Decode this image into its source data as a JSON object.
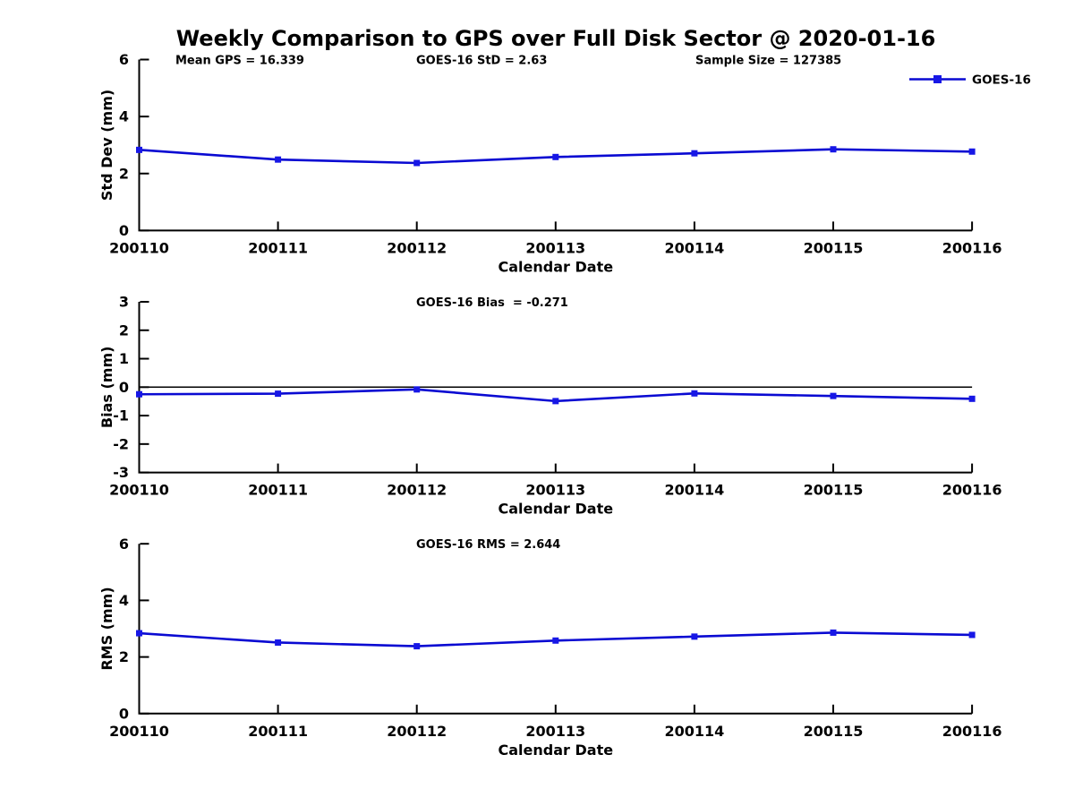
{
  "title": "Weekly Comparison to GPS over Full Disk Sector @ 2020-01-16",
  "legend": {
    "label": "GOES-16"
  },
  "colors": {
    "line": "#0a0ad2",
    "marker": "#1717e6",
    "axis": "#000000",
    "zero_line": "#000000",
    "text": "#000000"
  },
  "stats": {
    "mean_gps": 16.339,
    "goes16_std": 2.63,
    "sample_size": 127385,
    "goes16_bias": -0.271,
    "goes16_rms": 2.644
  },
  "chart_data": [
    {
      "type": "line",
      "panel": "std-dev",
      "ylabel": "Std Dev (mm)",
      "xlabel": "Calendar Date",
      "categories": [
        "200110",
        "200111",
        "200112",
        "200113",
        "200114",
        "200115",
        "200116"
      ],
      "ylim": [
        0,
        6
      ],
      "yticks": [
        0,
        2,
        4,
        6
      ],
      "grid": false,
      "legend_entries": [
        "GOES-16"
      ],
      "legend_position": "upper-right",
      "annotations": [
        "Mean GPS = 16.339",
        "GOES-16 StD = 2.63",
        "Sample Size = 127385"
      ],
      "series": [
        {
          "name": "GOES-16",
          "values": [
            2.83,
            2.49,
            2.37,
            2.58,
            2.71,
            2.85,
            2.77
          ]
        }
      ]
    },
    {
      "type": "line",
      "panel": "bias",
      "ylabel": "Bias (mm)",
      "xlabel": "Calendar Date",
      "categories": [
        "200110",
        "200111",
        "200112",
        "200113",
        "200114",
        "200115",
        "200116"
      ],
      "ylim": [
        -3,
        3
      ],
      "yticks": [
        3,
        2,
        1,
        0,
        -1,
        -2,
        -3
      ],
      "grid": false,
      "zero_line": true,
      "annotations": [
        "GOES-16 Bias  = -0.271"
      ],
      "series": [
        {
          "name": "GOES-16",
          "values": [
            -0.25,
            -0.23,
            -0.08,
            -0.49,
            -0.22,
            -0.31,
            -0.41
          ]
        }
      ]
    },
    {
      "type": "line",
      "panel": "rms",
      "ylabel": "RMS (mm)",
      "xlabel": "Calendar Date",
      "categories": [
        "200110",
        "200111",
        "200112",
        "200113",
        "200114",
        "200115",
        "200116"
      ],
      "ylim": [
        0,
        6
      ],
      "yticks": [
        0,
        2,
        4,
        6
      ],
      "grid": false,
      "annotations": [
        "GOES-16 RMS = 2.644"
      ],
      "series": [
        {
          "name": "GOES-16",
          "values": [
            2.84,
            2.51,
            2.38,
            2.58,
            2.72,
            2.86,
            2.78
          ]
        }
      ]
    }
  ]
}
